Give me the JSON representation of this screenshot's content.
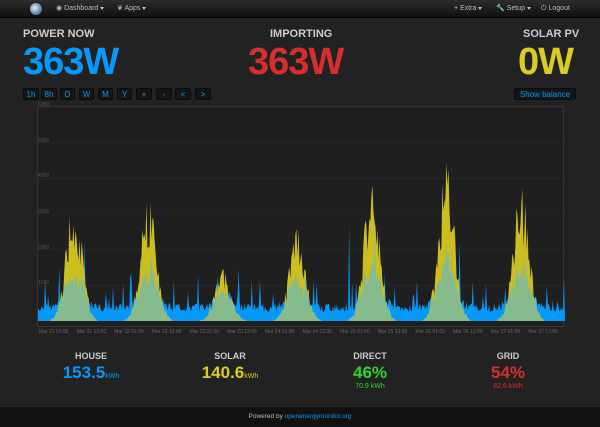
{
  "nav": {
    "dashboard": "Dashboard",
    "apps": "Apps",
    "extra": "Extra",
    "setup": "Setup",
    "logout": "Logout"
  },
  "power_now": {
    "label": "POWER NOW",
    "value": "363W",
    "color": "#0699fa"
  },
  "importing": {
    "label": "IMPORTING",
    "value": "363W",
    "color": "#d52e2e"
  },
  "solar_pv": {
    "label": "SOLAR PV",
    "value": "0W",
    "color": "#dccc1f"
  },
  "time_buttons": [
    "1h",
    "8h",
    "D",
    "W",
    "M",
    "Y",
    "+",
    "-",
    "<",
    ">"
  ],
  "show_balance": "Show balance",
  "chart_data": {
    "type": "area",
    "series": [
      {
        "color": "#0699fa"
      },
      {
        "color": "#dccc1f"
      }
    ],
    "yticks": [
      "1000",
      "2000",
      "3000",
      "4000",
      "5000",
      "6000"
    ],
    "ylim": [
      0,
      6000
    ],
    "xticks": [
      "Mar 21 01:00",
      "Mar 21 13:00",
      "Mar 22 01:00",
      "Mar 22 13:00",
      "Mar 23 01:00",
      "Mar 23 13:00",
      "Mar 24 01:00",
      "Mar 24 13:00",
      "Mar 25 01:00",
      "Mar 25 13:00",
      "Mar 26 01:00",
      "Mar 26 13:00",
      "Mar 27 01:00",
      "Mar 27 13:00"
    ],
    "solar_peaks": [
      {
        "day": 0,
        "peak": 3600
      },
      {
        "day": 1,
        "peak": 3700
      },
      {
        "day": 2,
        "peak": 1500
      },
      {
        "day": 3,
        "peak": 2700
      },
      {
        "day": 4,
        "peak": 4000
      },
      {
        "day": 5,
        "peak": 4500
      },
      {
        "day": 6,
        "peak": 3900
      }
    ]
  },
  "stats": {
    "house": {
      "label": "HOUSE",
      "value": "153.5",
      "unit": "kWh",
      "color": "#0699fa"
    },
    "solar": {
      "label": "SOLAR",
      "value": "140.6",
      "unit": "kWh",
      "color": "#dccc1f"
    },
    "direct": {
      "label": "DIRECT",
      "value": "46%",
      "sub": "70.9 kWh",
      "color": "#2ed52e"
    },
    "grid": {
      "label": "GRID",
      "value": "54%",
      "sub": "82.6 kWh",
      "color": "#d52e2e"
    }
  },
  "footer": {
    "text": "Powered by",
    "link": "openenergymonitor.org"
  }
}
